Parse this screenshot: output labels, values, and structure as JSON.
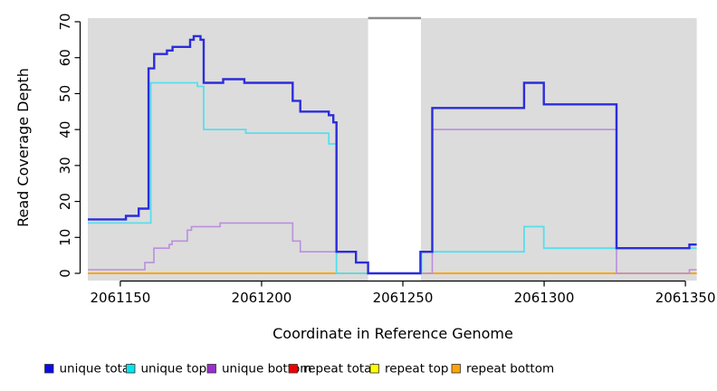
{
  "figure": {
    "background": "#ffffff",
    "plot_background": "#dcdcdc",
    "gap_top_line_color": "#8c8c8c"
  },
  "axis": {
    "x_label": "Coordinate in Reference Genome",
    "y_label": "Read Coverage Depth",
    "x_tick_labels": [
      "2061150",
      "2061200",
      "2061250",
      "2061300",
      "2061350"
    ],
    "y_tick_labels": [
      "0",
      "10",
      "20",
      "30",
      "40",
      "50",
      "60",
      "70"
    ]
  },
  "legend": {
    "items": [
      {
        "label": "unique total",
        "color": "#0b0be8"
      },
      {
        "label": "unique top",
        "color": "#00e5f0"
      },
      {
        "label": "unique bottom",
        "color": "#992ecc"
      },
      {
        "label": "repeat total",
        "color": "#ee0000"
      },
      {
        "label": "repeat top",
        "color": "#ffff00"
      },
      {
        "label": "repeat bottom",
        "color": "#ffa408"
      }
    ]
  },
  "chart_data": {
    "type": "line",
    "subtype": "step",
    "title": "",
    "xlabel": "Coordinate in Reference Genome",
    "ylabel": "Read Coverage Depth",
    "xlim": [
      2061138.5,
      2061354
    ],
    "ylim": [
      0,
      70
    ],
    "x_ticks": [
      2061150,
      2061200,
      2061250,
      2061300,
      2061350
    ],
    "y_ticks": [
      0,
      10,
      20,
      30,
      40,
      50,
      60,
      70
    ],
    "grid": false,
    "legend_position": "bottom",
    "shaded_regions": [
      [
        2061138.5,
        2061237.7
      ],
      [
        2061256.4,
        2061354
      ]
    ],
    "gap_region": [
      2061237.7,
      2061256.4
    ],
    "x_end": 2061354,
    "series": [
      {
        "name": "repeat total",
        "color": "#de0000",
        "width": 1.5,
        "points": [
          [
            2061138.5,
            0
          ]
        ]
      },
      {
        "name": "repeat top",
        "color": "#f5f500",
        "width": 1.5,
        "points": [
          [
            2061138.5,
            0
          ]
        ]
      },
      {
        "name": "repeat bottom",
        "color": "#ffa408",
        "width": 1.8,
        "points": [
          [
            2061138.5,
            0
          ]
        ]
      },
      {
        "name": "unique bottom",
        "color": "#ba8fde",
        "width": 1.6,
        "points": [
          [
            2061138.5,
            1
          ],
          [
            2061158.7,
            3
          ],
          [
            2061161.9,
            7
          ],
          [
            2061167.3,
            8
          ],
          [
            2061168.3,
            9
          ],
          [
            2061173.7,
            12
          ],
          [
            2061175.2,
            13
          ],
          [
            2061185.3,
            14
          ],
          [
            2061211,
            9
          ],
          [
            2061213.7,
            6
          ],
          [
            2061233.4,
            3
          ],
          [
            2061237.7,
            0
          ],
          [
            2061260.4,
            40
          ],
          [
            2061325.6,
            0
          ],
          [
            2061351.4,
            1
          ]
        ]
      },
      {
        "name": "unique top",
        "color": "#55dfee",
        "width": 1.8,
        "points": [
          [
            2061138.5,
            14
          ],
          [
            2061160.8,
            53
          ],
          [
            2061177.3,
            52
          ],
          [
            2061179.5,
            40
          ],
          [
            2061194.4,
            39
          ],
          [
            2061223.8,
            36
          ],
          [
            2061226.5,
            0
          ],
          [
            2061256.6,
            6
          ],
          [
            2061292.9,
            13
          ],
          [
            2061299.9,
            7
          ]
        ]
      },
      {
        "name": "unique total",
        "color": "#2c2cdc",
        "width": 2.4,
        "points": [
          [
            2061138.5,
            15
          ],
          [
            2061152,
            16
          ],
          [
            2061156.5,
            18
          ],
          [
            2061160,
            57
          ],
          [
            2061162,
            61
          ],
          [
            2061166.5,
            62
          ],
          [
            2061168.5,
            63
          ],
          [
            2061174.7,
            65
          ],
          [
            2061176,
            66
          ],
          [
            2061178.4,
            65
          ],
          [
            2061179.5,
            53
          ],
          [
            2061186.4,
            54
          ],
          [
            2061193.9,
            53
          ],
          [
            2061211,
            48
          ],
          [
            2061213.7,
            45
          ],
          [
            2061223.8,
            44
          ],
          [
            2061225.4,
            42
          ],
          [
            2061226.5,
            6
          ],
          [
            2061233.4,
            3
          ],
          [
            2061237.7,
            0
          ],
          [
            2061256.2,
            6
          ],
          [
            2061260.4,
            46
          ],
          [
            2061292.9,
            53
          ],
          [
            2061299.9,
            47
          ],
          [
            2061325.6,
            7
          ],
          [
            2061351.4,
            8
          ]
        ]
      }
    ]
  }
}
